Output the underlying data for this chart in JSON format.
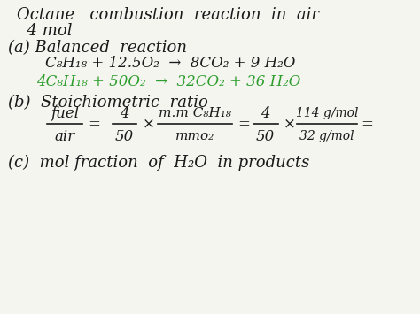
{
  "bg_color": "#f5f5f0",
  "title_line1": "Octane   combustion  reaction  in  air",
  "title_line2": "  4 mol",
  "part_a_header": "(a) Balanced  reaction",
  "eq1": "C₈H₁₈ + 12.5O₂  →  8CO₂ + 9 H₂O",
  "eq2_green": "4C₈H₁₈ + 50O₂  →  32CO₂ + 36 H₂O",
  "part_b_header": "(b)  Stoichiometric  ratio",
  "fuel_label": "fuel",
  "air_label": "air",
  "ratio_val1_num": "4",
  "ratio_val1_den": "50",
  "ratio_mmC8H18_num": "m.m C₈H₁₈",
  "ratio_mmC8H18_den": "mmo₂",
  "ratio_val2_num": "4",
  "ratio_val2_den": "50",
  "ratio_num2": "114 g/mol",
  "ratio_den2": "32 g/mol",
  "part_c_header": "(c)  mol fraction  of  H₂O  in products",
  "black": "#1a1a1a",
  "green": "#2d9e2d",
  "font_size_title": 13,
  "font_size_body": 12,
  "font_size_small": 11,
  "font_size_tiny": 10
}
